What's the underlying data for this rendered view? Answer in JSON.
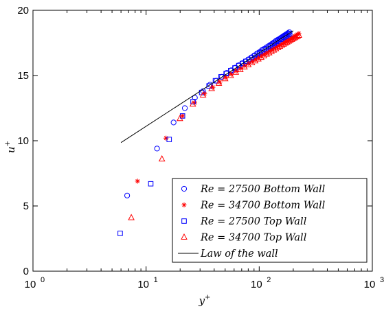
{
  "chart_data": {
    "type": "scatter",
    "title": "",
    "xlabel": "y⁺",
    "ylabel": "u⁺",
    "xscale": "log",
    "xlim": [
      1,
      1000
    ],
    "ylim": [
      0,
      20
    ],
    "x_ticks": [
      1,
      10,
      100,
      1000
    ],
    "x_tick_labels": [
      {
        "base": "10",
        "exp": "0"
      },
      {
        "base": "10",
        "exp": "1"
      },
      {
        "base": "10",
        "exp": "2"
      },
      {
        "base": "10",
        "exp": "3"
      }
    ],
    "y_ticks": [
      0,
      5,
      10,
      15,
      20
    ],
    "y_tick_labels": [
      "0",
      "5",
      "10",
      "15",
      "20"
    ],
    "grid": false,
    "legend_position": "bottom-right",
    "series": [
      {
        "name": "Re = 27500 Bottom Wall",
        "marker": "circle",
        "color": "#0000ff",
        "x": [
          6.8,
          12.5,
          17.5,
          22.0,
          27.0,
          31.9,
          36.8,
          41.8,
          46.7,
          51.6,
          56.6,
          61.5,
          66.4,
          71.3,
          76.3,
          81.2,
          86.1,
          91.0,
          96.0,
          100.9,
          105.8,
          110.8,
          115.7,
          120.6,
          125.5,
          130.5,
          135.4,
          140.3,
          145.3,
          150.2,
          155.1,
          160.0,
          165.0,
          169.9,
          174.8,
          179.8,
          184.7
        ],
        "y": [
          5.8,
          9.4,
          11.4,
          12.5,
          13.3,
          13.8,
          14.3,
          14.6,
          14.9,
          15.2,
          15.4,
          15.6,
          15.8,
          15.95,
          16.1,
          16.25,
          16.4,
          16.55,
          16.7,
          16.8,
          16.95,
          17.05,
          17.15,
          17.25,
          17.35,
          17.45,
          17.55,
          17.65,
          17.73,
          17.8,
          17.88,
          17.96,
          18.04,
          18.11,
          18.18,
          18.25,
          18.32
        ]
      },
      {
        "name": "Re = 34700 Bottom Wall",
        "marker": "star",
        "color": "#ff0000",
        "x": [
          8.4,
          15.0,
          21.0,
          26.9,
          32.9,
          38.9,
          44.9,
          50.8,
          56.8,
          62.8,
          68.8,
          74.7,
          80.7,
          86.7,
          92.7,
          98.6,
          104.6,
          110.6,
          116.6,
          122.5,
          128.5,
          134.5,
          140.5,
          146.4,
          152.4,
          158.4,
          164.4,
          170.3,
          176.3,
          182.3,
          188.3,
          194.2,
          200.2,
          206.2,
          212.2,
          218.1,
          224.1
        ],
        "y": [
          6.9,
          10.2,
          11.9,
          12.9,
          13.6,
          14.1,
          14.5,
          14.85,
          15.1,
          15.35,
          15.55,
          15.75,
          15.92,
          16.08,
          16.22,
          16.37,
          16.5,
          16.62,
          16.74,
          16.86,
          16.97,
          17.07,
          17.17,
          17.26,
          17.35,
          17.44,
          17.52,
          17.6,
          17.68,
          17.75,
          17.82,
          17.89,
          17.96,
          18.03,
          18.09,
          18.15,
          18.22
        ]
      },
      {
        "name": "Re = 27500 Top Wall",
        "marker": "square",
        "color": "#0000ff",
        "x": [
          5.9,
          11.0,
          16.0,
          21.0,
          26.0,
          31.0,
          36.0,
          41.0,
          46.0,
          51.0,
          56.0,
          61.0,
          66.0,
          71.0,
          76.0,
          81.0,
          86.0,
          91.0,
          96.0,
          101.0,
          106.0,
          111.0,
          116.0,
          121.0,
          126.0,
          131.0,
          136.0,
          141.0,
          146.0,
          151.0,
          156.0,
          161.0,
          166.0,
          171.0,
          176.0,
          181.0,
          186.0
        ],
        "y": [
          2.9,
          6.7,
          10.1,
          11.9,
          13.0,
          13.7,
          14.2,
          14.6,
          14.9,
          15.15,
          15.38,
          15.58,
          15.76,
          15.92,
          16.08,
          16.22,
          16.36,
          16.5,
          16.62,
          16.74,
          16.86,
          16.97,
          17.07,
          17.17,
          17.27,
          17.36,
          17.45,
          17.54,
          17.62,
          17.7,
          17.78,
          17.86,
          17.93,
          18.0,
          18.07,
          18.14,
          18.21
        ]
      },
      {
        "name": "Re = 34700 Top Wall",
        "marker": "triangle",
        "color": "#ff0000",
        "x": [
          7.4,
          13.8,
          19.9,
          25.9,
          31.9,
          38.0,
          44.0,
          50.0,
          56.0,
          62.1,
          68.1,
          74.1,
          80.1,
          86.2,
          92.2,
          98.2,
          104.2,
          110.3,
          116.3,
          122.3,
          128.3,
          134.4,
          140.4,
          146.4,
          152.4,
          158.5,
          164.5,
          170.5,
          176.5,
          182.6,
          188.6,
          194.6,
          200.6,
          206.7,
          212.7,
          218.7,
          224.7
        ],
        "y": [
          4.1,
          8.6,
          11.7,
          12.8,
          13.5,
          14.0,
          14.4,
          14.75,
          15.0,
          15.25,
          15.45,
          15.65,
          15.82,
          15.98,
          16.12,
          16.26,
          16.39,
          16.51,
          16.63,
          16.74,
          16.85,
          16.95,
          17.05,
          17.14,
          17.23,
          17.32,
          17.4,
          17.48,
          17.56,
          17.63,
          17.7,
          17.77,
          17.84,
          17.9,
          17.96,
          18.02,
          18.08
        ]
      },
      {
        "name": "Law of the wall",
        "marker": "line",
        "color": "#000000",
        "x": [
          6.0,
          200.0
        ],
        "y": [
          9.86,
          18.43
        ]
      }
    ]
  }
}
